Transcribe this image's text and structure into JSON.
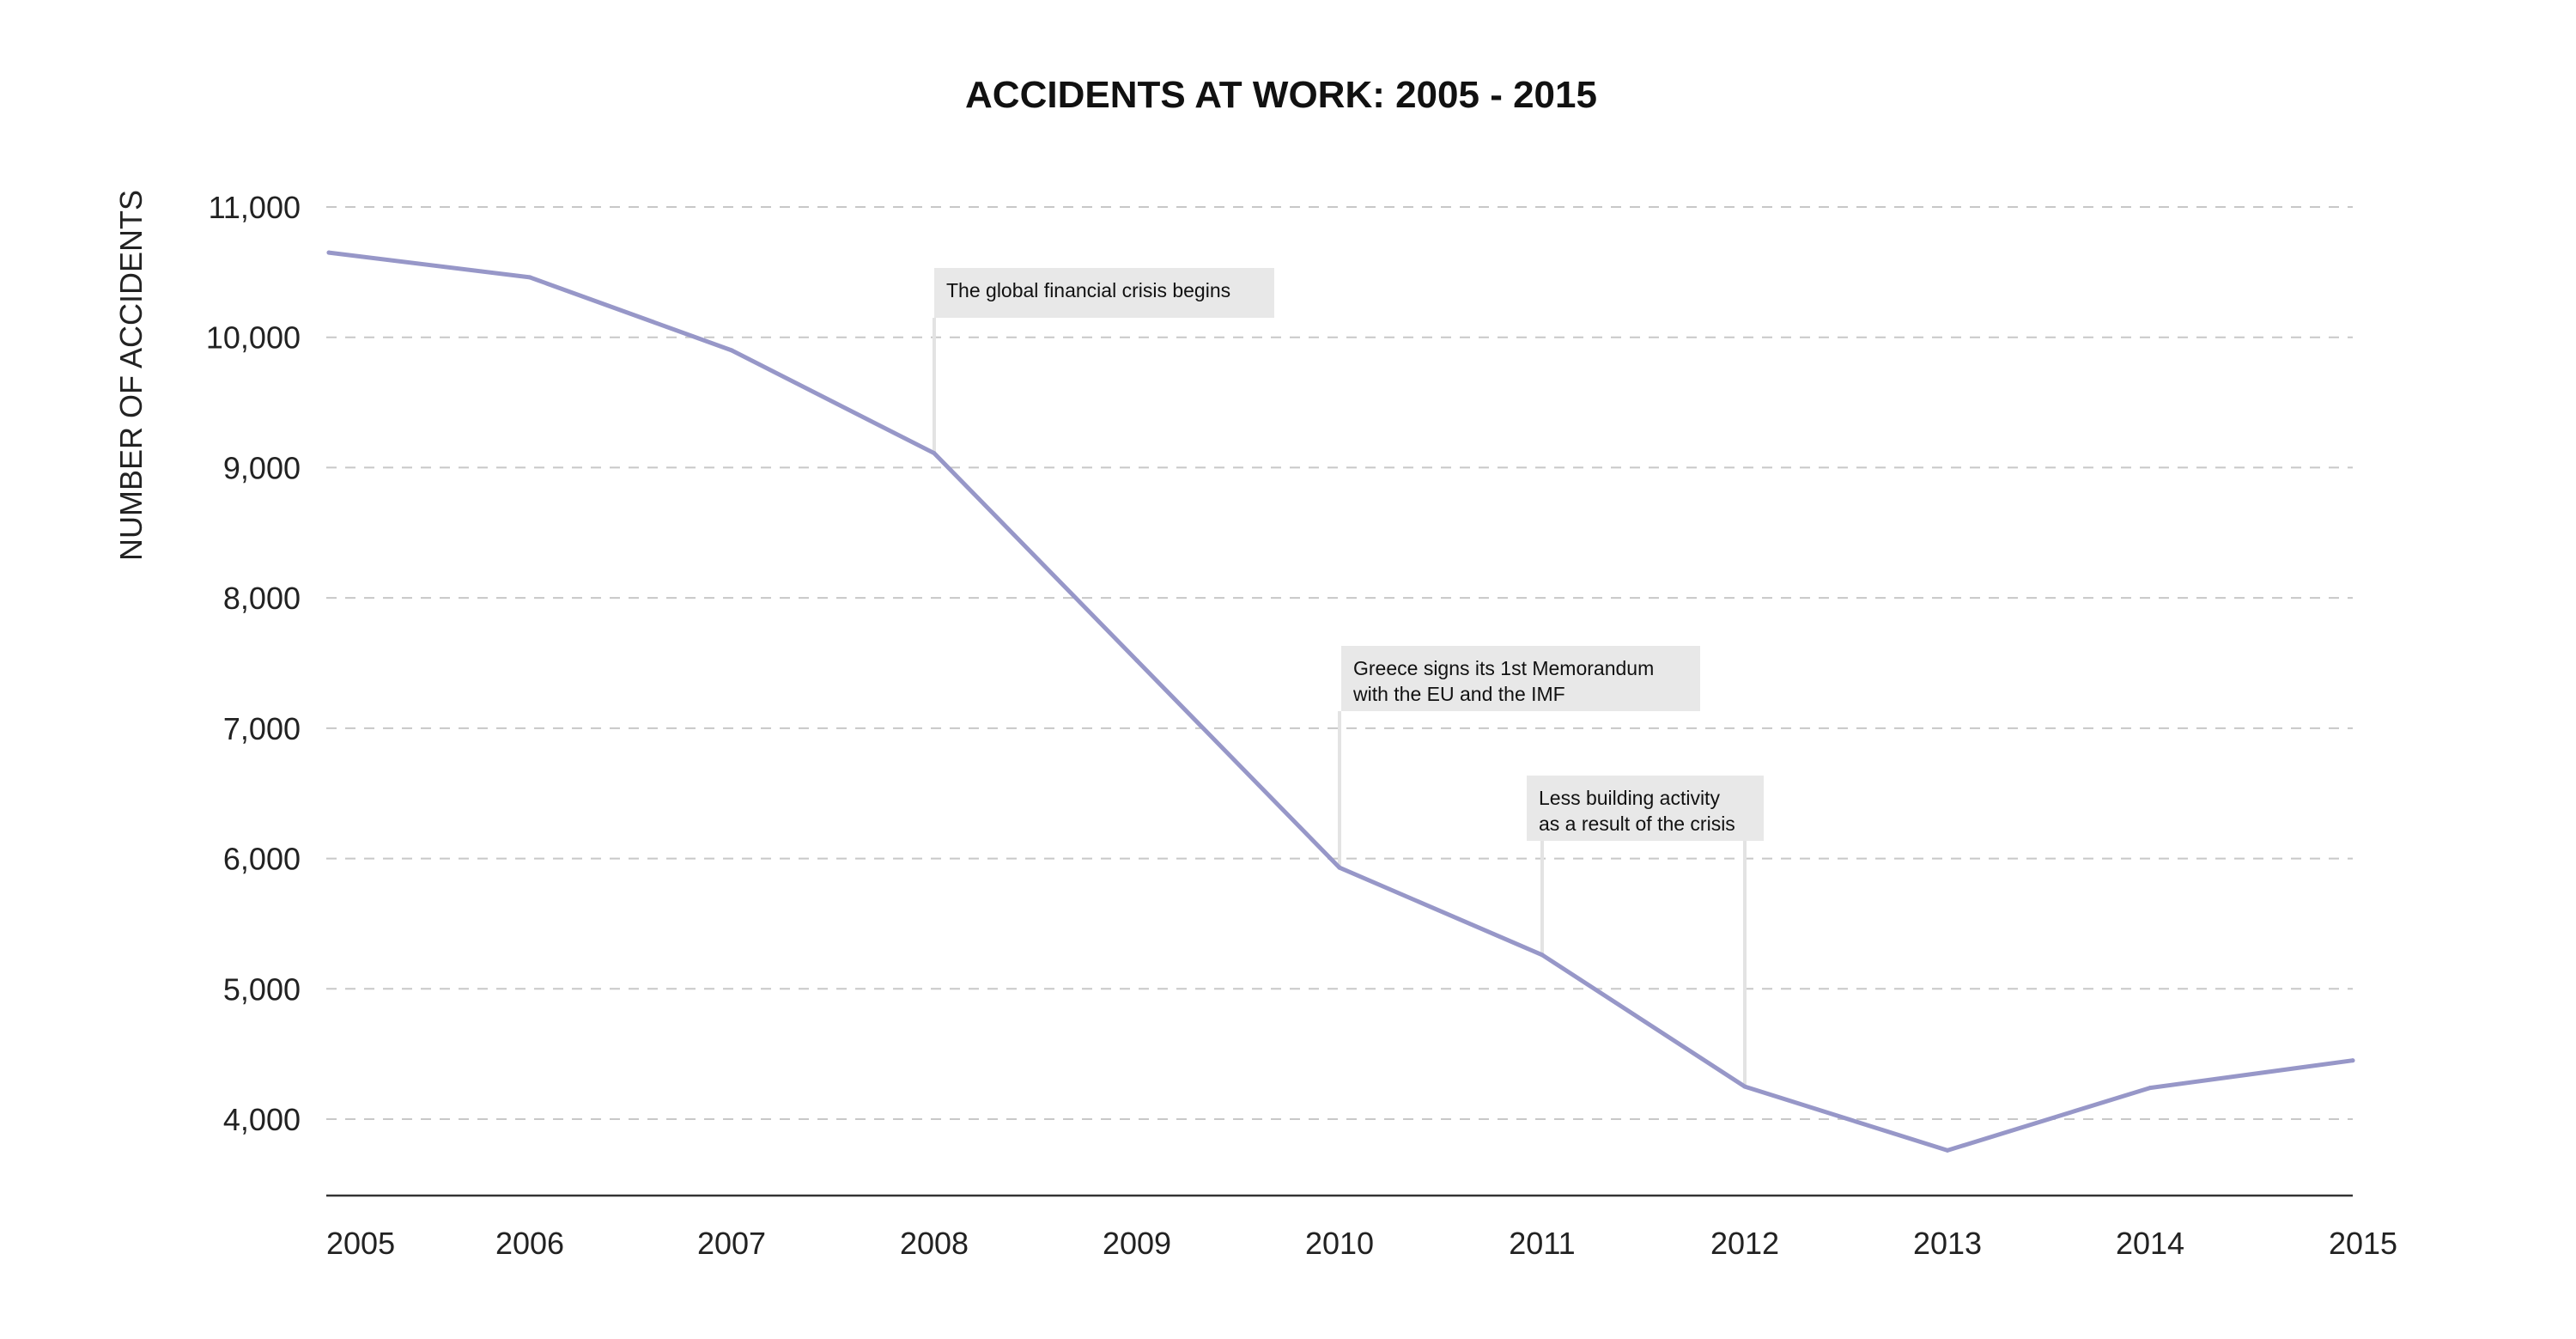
{
  "chart_data": {
    "type": "line",
    "title": "ACCIDENTS AT WORK: 2005 - 2015",
    "xlabel": "",
    "ylabel": "NUMBER OF ACCIDENTS",
    "x": [
      2005,
      2006,
      2007,
      2008,
      2009,
      2010,
      2011,
      2012,
      2013,
      2014,
      2015
    ],
    "series": [
      {
        "values": [
          10650,
          10460,
          9900,
          9110,
          7520,
          5930,
          5260,
          4250,
          3760,
          4240,
          4450
        ]
      }
    ],
    "yticks": [
      "4,000",
      "5,000",
      "6,000",
      "7,000",
      "8,000",
      "9,000",
      "10,000",
      "11,000"
    ],
    "ytick_values": [
      4000,
      5000,
      6000,
      7000,
      8000,
      9000,
      10000,
      11000
    ],
    "xticks": [
      "2005",
      "2006",
      "2007",
      "2008",
      "2009",
      "2010",
      "2011",
      "2012",
      "2013",
      "2014",
      "2015"
    ],
    "ylim": [
      3400,
      11100
    ],
    "grid": "horizontal-dashed",
    "legend": "none",
    "colors": {
      "line": "#9797c8",
      "annotation_box": "#e8e8e8",
      "grid": "#c8c8c8"
    },
    "annotations": [
      {
        "lines": [
          "The global financial crisis begins"
        ],
        "x": 2008
      },
      {
        "lines": [
          "Greece signs its 1st Memorandum",
          "with the EU and the IMF"
        ],
        "x": 2010
      },
      {
        "lines": [
          "Less building activity",
          "as a result of the crisis"
        ],
        "x": [
          2011,
          2012
        ]
      }
    ]
  }
}
